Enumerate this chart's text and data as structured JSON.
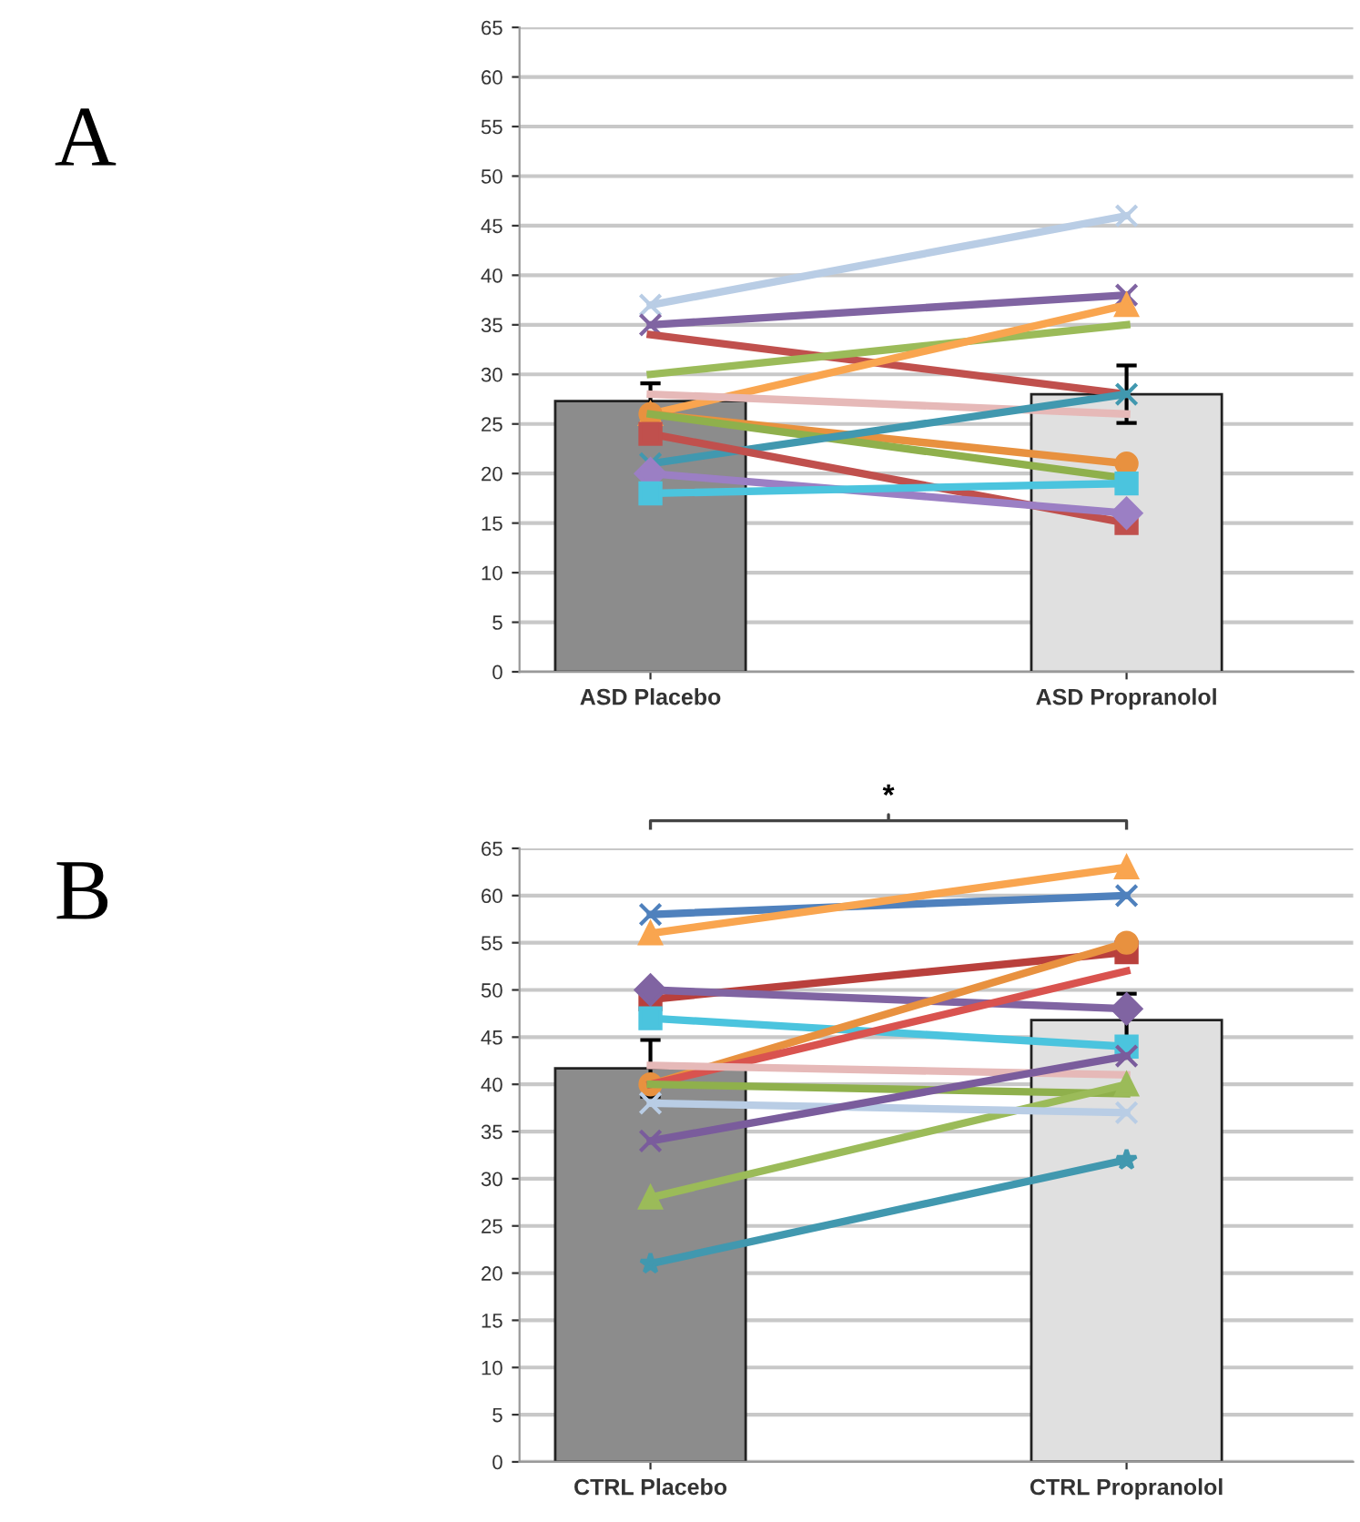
{
  "chart_data": [
    {
      "type": "bar",
      "categories": [
        "ASD Placebo",
        "ASD Propranolol"
      ],
      "ylim": [
        0,
        65
      ],
      "yticks": [
        0,
        5,
        10,
        15,
        20,
        25,
        30,
        35,
        40,
        45,
        50,
        55,
        60,
        65
      ],
      "grid": "y",
      "legend": false,
      "annotations": [
        "A"
      ],
      "series": [
        {
          "colors": [
            "#8c8c8c",
            "#e0e0e0"
          ],
          "values": [
            27.3,
            28.0
          ],
          "errors": [
            1.8,
            2.9
          ]
        },
        {
          "type": "line",
          "color": "#b9cde5",
          "marker": "cross",
          "values": [
            37,
            46
          ]
        },
        {
          "type": "line",
          "color": "#8064a2",
          "marker": "cross",
          "values": [
            35,
            38
          ]
        },
        {
          "type": "line",
          "color": "#c0504d",
          "marker": "none",
          "values": [
            34,
            28
          ]
        },
        {
          "type": "line",
          "color": "#9bbb59",
          "marker": "none",
          "values": [
            30,
            35
          ]
        },
        {
          "type": "line",
          "color": "#f9a54f",
          "marker": "triangle",
          "values": [
            26,
            37
          ]
        },
        {
          "type": "line",
          "color": "#e6b9b8",
          "marker": "none",
          "values": [
            28,
            26
          ]
        },
        {
          "type": "line",
          "color": "#e8913f",
          "marker": "circle",
          "values": [
            26,
            21
          ]
        },
        {
          "type": "line",
          "color": "#8fb04c",
          "marker": "none",
          "values": [
            26,
            19.5
          ]
        },
        {
          "type": "line",
          "color": "#4198af",
          "marker": "cross",
          "values": [
            21,
            28
          ]
        },
        {
          "type": "line",
          "color": "#c0504d",
          "marker": "square",
          "values": [
            24,
            15
          ]
        },
        {
          "type": "line",
          "color": "#9b7fc4",
          "marker": "diamond",
          "values": [
            20,
            16
          ]
        },
        {
          "type": "line",
          "color": "#4bc4de",
          "marker": "square",
          "values": [
            18,
            19
          ]
        }
      ]
    },
    {
      "type": "bar",
      "categories": [
        "CTRL Placebo",
        "CTRL Propranolol"
      ],
      "ylim": [
        0,
        65
      ],
      "yticks": [
        0,
        5,
        10,
        15,
        20,
        25,
        30,
        35,
        40,
        45,
        50,
        55,
        60,
        65
      ],
      "grid": "y",
      "legend": false,
      "annotations": [
        "B",
        "*"
      ],
      "series": [
        {
          "colors": [
            "#8c8c8c",
            "#e0e0e0"
          ],
          "values": [
            41.7,
            46.8
          ],
          "errors": [
            3.0,
            2.8
          ]
        },
        {
          "type": "line",
          "color": "#4f81bd",
          "marker": "cross",
          "values": [
            58,
            60
          ]
        },
        {
          "type": "line",
          "color": "#f9a54f",
          "marker": "triangle",
          "values": [
            56,
            63
          ]
        },
        {
          "type": "line",
          "color": "#b9403c",
          "marker": "square",
          "values": [
            49,
            54
          ]
        },
        {
          "type": "line",
          "color": "#8064a2",
          "marker": "diamond",
          "values": [
            50,
            48
          ]
        },
        {
          "type": "line",
          "color": "#4bc4de",
          "marker": "square",
          "values": [
            47,
            44
          ]
        },
        {
          "type": "line",
          "color": "#e8913f",
          "marker": "circle",
          "values": [
            40,
            55
          ]
        },
        {
          "type": "line",
          "color": "#d9534f",
          "marker": "none",
          "values": [
            40,
            52
          ]
        },
        {
          "type": "line",
          "color": "#e6b9b8",
          "marker": "none",
          "values": [
            42,
            41
          ]
        },
        {
          "type": "line",
          "color": "#8fb04c",
          "marker": "none",
          "values": [
            40,
            39
          ]
        },
        {
          "type": "line",
          "color": "#9bbb59",
          "marker": "triangle",
          "values": [
            28,
            40
          ]
        },
        {
          "type": "line",
          "color": "#b9cde5",
          "marker": "cross",
          "values": [
            38,
            37
          ]
        },
        {
          "type": "line",
          "color": "#7a5c9c",
          "marker": "cross",
          "values": [
            34,
            43
          ]
        },
        {
          "type": "line",
          "color": "#4198af",
          "marker": "star",
          "values": [
            21,
            32
          ]
        }
      ]
    }
  ]
}
